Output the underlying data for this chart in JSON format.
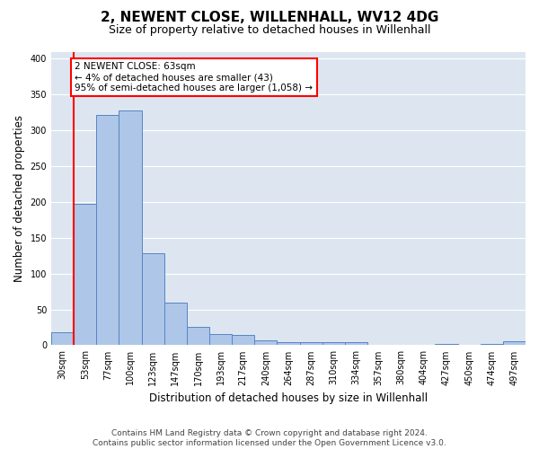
{
  "title": "2, NEWENT CLOSE, WILLENHALL, WV12 4DG",
  "subtitle": "Size of property relative to detached houses in Willenhall",
  "xlabel": "Distribution of detached houses by size in Willenhall",
  "ylabel": "Number of detached properties",
  "categories": [
    "30sqm",
    "53sqm",
    "77sqm",
    "100sqm",
    "123sqm",
    "147sqm",
    "170sqm",
    "193sqm",
    "217sqm",
    "240sqm",
    "264sqm",
    "287sqm",
    "310sqm",
    "334sqm",
    "357sqm",
    "380sqm",
    "404sqm",
    "427sqm",
    "450sqm",
    "474sqm",
    "497sqm"
  ],
  "values": [
    18,
    198,
    322,
    328,
    128,
    60,
    26,
    15,
    14,
    7,
    4,
    4,
    4,
    4,
    0,
    0,
    0,
    2,
    0,
    2,
    5
  ],
  "bar_color": "#aec6e8",
  "bar_edge_color": "#5585c5",
  "background_color": "#dde6f0",
  "annotation_line1": "2 NEWENT CLOSE: 63sqm",
  "annotation_line2": "← 4% of detached houses are smaller (43)",
  "annotation_line3": "95% of semi-detached houses are larger (1,058) →",
  "annotation_box_color": "white",
  "annotation_box_edge": "red",
  "vline_color": "red",
  "footnote": "Contains HM Land Registry data © Crown copyright and database right 2024.\nContains public sector information licensed under the Open Government Licence v3.0.",
  "ylim": [
    0,
    410
  ],
  "yticks": [
    0,
    50,
    100,
    150,
    200,
    250,
    300,
    350,
    400
  ],
  "grid_color": "#ffffff",
  "title_fontsize": 11,
  "subtitle_fontsize": 9,
  "ylabel_fontsize": 8.5,
  "xlabel_fontsize": 8.5,
  "tick_fontsize": 7,
  "footnote_fontsize": 6.5
}
